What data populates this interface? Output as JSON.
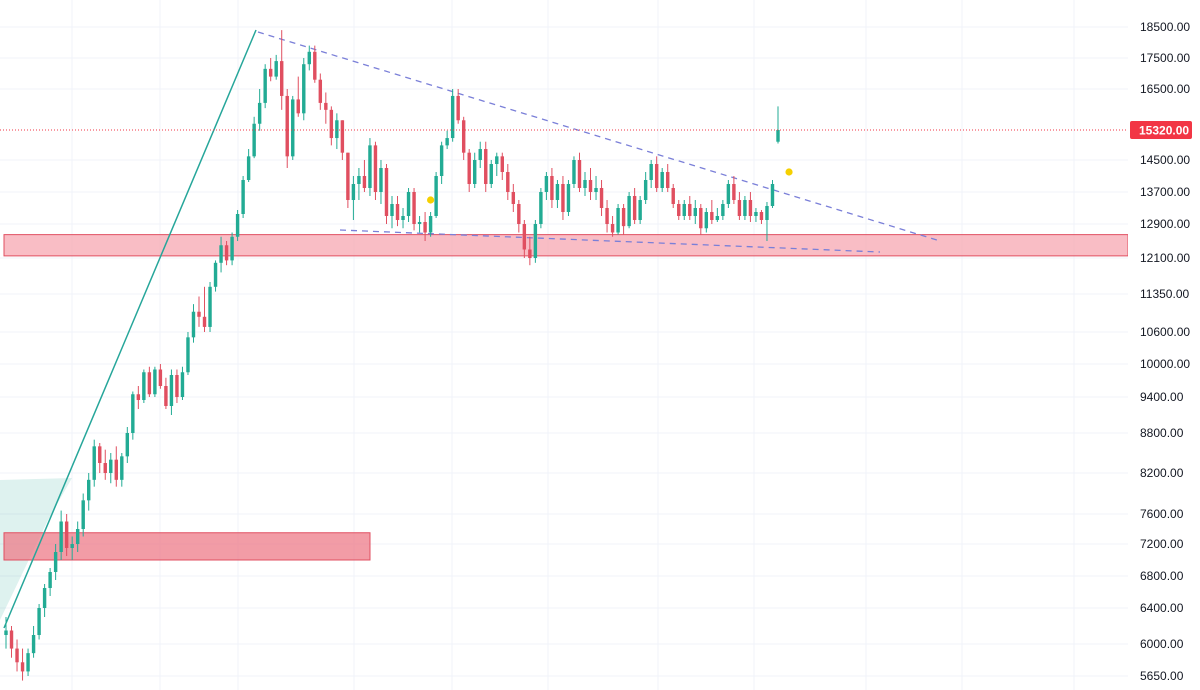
{
  "chart_data": {
    "type": "candlestick",
    "symbol": "",
    "y_axis": {
      "ticks": [
        "18500.00",
        "17500.00",
        "16500.00",
        "15320.00",
        "14500.00",
        "13700.00",
        "12900.00",
        "12100.00",
        "11350.00",
        "10600.00",
        "10000.00",
        "9400.00",
        "8800.00",
        "8200.00",
        "7600.00",
        "7200.00",
        "6800.00",
        "6400.00",
        "6000.00",
        "5650.00"
      ],
      "tick_values": [
        18500,
        17500,
        16500,
        15320,
        14500,
        13700,
        12900,
        12100,
        11350,
        10600,
        10000,
        9400,
        8800,
        8200,
        7600,
        7200,
        6800,
        6400,
        6000,
        5650
      ]
    },
    "last_price": {
      "label": "15320.00",
      "value": 15320,
      "color": "#f23645"
    },
    "colors": {
      "up": "#22ab94",
      "down": "#e04f60",
      "zone_fill": "#f7a7b1",
      "zone_border": "#e04f60",
      "trendline": "#26a69a",
      "dashed": "#7a7fd8",
      "marker": "#f5d000",
      "grid": "#f0f3fa"
    },
    "zones": [
      {
        "name": "resistance-zone-upper",
        "low": 12150,
        "high": 12650
      },
      {
        "name": "support-zone-lower",
        "low": 7000,
        "high": 7350
      }
    ],
    "candles": [
      [
        6100,
        6300,
        5950,
        6150
      ],
      [
        6150,
        6200,
        5850,
        5950
      ],
      [
        5950,
        6050,
        5700,
        5800
      ],
      [
        5800,
        5950,
        5600,
        5700
      ],
      [
        5700,
        5950,
        5650,
        5900
      ],
      [
        5900,
        6200,
        5850,
        6100
      ],
      [
        6100,
        6450,
        6050,
        6400
      ],
      [
        6400,
        6700,
        6300,
        6650
      ],
      [
        6650,
        6900,
        6550,
        6850
      ],
      [
        6850,
        7200,
        6750,
        7100
      ],
      [
        7100,
        7650,
        7000,
        7500
      ],
      [
        7500,
        7600,
        7050,
        7150
      ],
      [
        7150,
        7300,
        7000,
        7200
      ],
      [
        7200,
        7500,
        7100,
        7400
      ],
      [
        7400,
        7900,
        7300,
        7800
      ],
      [
        7800,
        8200,
        7650,
        8100
      ],
      [
        8100,
        8700,
        8000,
        8600
      ],
      [
        8600,
        8650,
        8200,
        8350
      ],
      [
        8350,
        8550,
        8100,
        8200
      ],
      [
        8200,
        8500,
        8050,
        8400
      ],
      [
        8400,
        8600,
        8000,
        8100
      ],
      [
        8100,
        8500,
        8000,
        8450
      ],
      [
        8450,
        8900,
        8350,
        8800
      ],
      [
        8800,
        9500,
        8700,
        9450
      ],
      [
        9450,
        9600,
        9200,
        9350
      ],
      [
        9350,
        9900,
        9300,
        9850
      ],
      [
        9850,
        9950,
        9400,
        9450
      ],
      [
        9450,
        9950,
        9400,
        9900
      ],
      [
        9900,
        10000,
        9550,
        9600
      ],
      [
        9600,
        9750,
        9200,
        9250
      ],
      [
        9250,
        9900,
        9100,
        9800
      ],
      [
        9800,
        9900,
        9300,
        9400
      ],
      [
        9400,
        9950,
        9350,
        9850
      ],
      [
        9850,
        10600,
        9800,
        10500
      ],
      [
        10500,
        11150,
        10400,
        11000
      ],
      [
        11000,
        11300,
        10700,
        10900
      ],
      [
        10900,
        11500,
        10600,
        10700
      ],
      [
        10700,
        11600,
        10600,
        11500
      ],
      [
        11500,
        12050,
        11400,
        12000
      ],
      [
        12000,
        12600,
        11800,
        12400
      ],
      [
        12400,
        12500,
        11950,
        12050
      ],
      [
        12050,
        12700,
        11950,
        12600
      ],
      [
        12600,
        13250,
        12500,
        13150
      ],
      [
        13150,
        14100,
        13050,
        14000
      ],
      [
        14000,
        14800,
        13950,
        14600
      ],
      [
        14600,
        15700,
        14550,
        15500
      ],
      [
        15500,
        16500,
        15300,
        16100
      ],
      [
        16100,
        17300,
        15950,
        17150
      ],
      [
        17150,
        17500,
        16750,
        16900
      ],
      [
        16900,
        17600,
        16800,
        17400
      ],
      [
        17400,
        18400,
        15900,
        16300
      ],
      [
        16300,
        16500,
        14300,
        14600
      ],
      [
        14600,
        16300,
        14500,
        16200
      ],
      [
        16200,
        16900,
        15700,
        15800
      ],
      [
        15800,
        17500,
        15600,
        17300
      ],
      [
        17300,
        17900,
        17100,
        17700
      ],
      [
        17700,
        17900,
        16700,
        16800
      ],
      [
        16800,
        17000,
        15900,
        16100
      ],
      [
        16100,
        16400,
        15500,
        15900
      ],
      [
        15900,
        16000,
        14900,
        15100
      ],
      [
        15100,
        15800,
        14800,
        15600
      ],
      [
        15600,
        15600,
        14500,
        14700
      ],
      [
        14700,
        14700,
        13300,
        13500
      ],
      [
        13500,
        14100,
        13000,
        13900
      ],
      [
        13900,
        14300,
        13500,
        14100
      ],
      [
        14100,
        14500,
        13700,
        13800
      ],
      [
        13800,
        15100,
        13600,
        14900
      ],
      [
        14900,
        15000,
        13500,
        13700
      ],
      [
        13700,
        14500,
        13400,
        14300
      ],
      [
        14300,
        14400,
        12900,
        13100
      ],
      [
        13100,
        13600,
        12800,
        13400
      ],
      [
        13400,
        13600,
        12850,
        13000
      ],
      [
        13000,
        13300,
        12800,
        13100
      ],
      [
        13100,
        13800,
        12950,
        13700
      ],
      [
        13700,
        13800,
        12750,
        12900
      ],
      [
        12900,
        13100,
        12700,
        12950
      ],
      [
        12950,
        13200,
        12500,
        12700
      ],
      [
        12700,
        13200,
        12600,
        13100
      ],
      [
        13100,
        14200,
        13050,
        14100
      ],
      [
        14100,
        15000,
        13900,
        14900
      ],
      [
        14900,
        15300,
        14800,
        15100
      ],
      [
        15100,
        16500,
        15000,
        16300
      ],
      [
        16300,
        16500,
        15500,
        15600
      ],
      [
        15600,
        15700,
        14500,
        14700
      ],
      [
        14700,
        14800,
        13700,
        13900
      ],
      [
        13900,
        14700,
        13800,
        14500
      ],
      [
        14500,
        15000,
        14300,
        14800
      ],
      [
        14800,
        15000,
        13700,
        13900
      ],
      [
        13900,
        14500,
        13800,
        14400
      ],
      [
        14400,
        14700,
        14100,
        14600
      ],
      [
        14600,
        14700,
        14000,
        14200
      ],
      [
        14200,
        14400,
        13500,
        13700
      ],
      [
        13700,
        13900,
        13200,
        13400
      ],
      [
        13400,
        13500,
        12700,
        12900
      ],
      [
        12900,
        13000,
        12100,
        12300
      ],
      [
        12300,
        12600,
        11950,
        12100
      ],
      [
        12100,
        13000,
        12000,
        12900
      ],
      [
        12900,
        13800,
        12800,
        13700
      ],
      [
        13700,
        14200,
        13500,
        14100
      ],
      [
        14100,
        14300,
        13300,
        13500
      ],
      [
        13500,
        14000,
        13300,
        13900
      ],
      [
        13900,
        14100,
        13000,
        13200
      ],
      [
        13200,
        14000,
        13100,
        13900
      ],
      [
        13900,
        14600,
        13800,
        14500
      ],
      [
        14500,
        14700,
        13700,
        13800
      ],
      [
        13800,
        14200,
        13600,
        14000
      ],
      [
        14000,
        14300,
        13500,
        13700
      ],
      [
        13700,
        14100,
        13500,
        13800
      ],
      [
        13800,
        14000,
        13100,
        13300
      ],
      [
        13300,
        13500,
        12700,
        12900
      ],
      [
        12900,
        13100,
        12600,
        12700
      ],
      [
        12700,
        13400,
        12650,
        13300
      ],
      [
        13300,
        13400,
        12650,
        12850
      ],
      [
        12850,
        13700,
        12800,
        13600
      ],
      [
        13600,
        13800,
        12900,
        13000
      ],
      [
        13000,
        13600,
        12900,
        13500
      ],
      [
        13500,
        14200,
        13400,
        14000
      ],
      [
        14000,
        14500,
        13800,
        14400
      ],
      [
        14400,
        14600,
        13700,
        13800
      ],
      [
        13800,
        14300,
        13700,
        14200
      ],
      [
        14200,
        14400,
        13700,
        13800
      ],
      [
        13800,
        13900,
        13300,
        13400
      ],
      [
        13400,
        13500,
        13000,
        13100
      ],
      [
        13100,
        13500,
        13000,
        13400
      ],
      [
        13400,
        13600,
        13000,
        13100
      ],
      [
        13100,
        13500,
        12900,
        13300
      ],
      [
        13300,
        13400,
        12650,
        12800
      ],
      [
        12800,
        13300,
        12700,
        13200
      ],
      [
        13200,
        13500,
        12900,
        13000
      ],
      [
        13000,
        13300,
        12950,
        13100
      ],
      [
        13100,
        13500,
        13000,
        13400
      ],
      [
        13400,
        14000,
        13300,
        13900
      ],
      [
        13900,
        14100,
        13400,
        13500
      ],
      [
        13500,
        13700,
        13000,
        13100
      ],
      [
        13100,
        13600,
        13000,
        13500
      ],
      [
        13500,
        13700,
        12950,
        13100
      ],
      [
        13100,
        13300,
        12950,
        13200
      ],
      [
        13200,
        13250,
        12900,
        13000
      ],
      [
        13000,
        13450,
        12500,
        13350
      ],
      [
        13350,
        14000,
        13300,
        13900
      ],
      [
        15000,
        16000,
        14950,
        15320
      ]
    ],
    "markers": [
      {
        "index": 77,
        "price": 13500
      },
      {
        "index": 142,
        "price": 14200
      }
    ],
    "grid": true
  }
}
